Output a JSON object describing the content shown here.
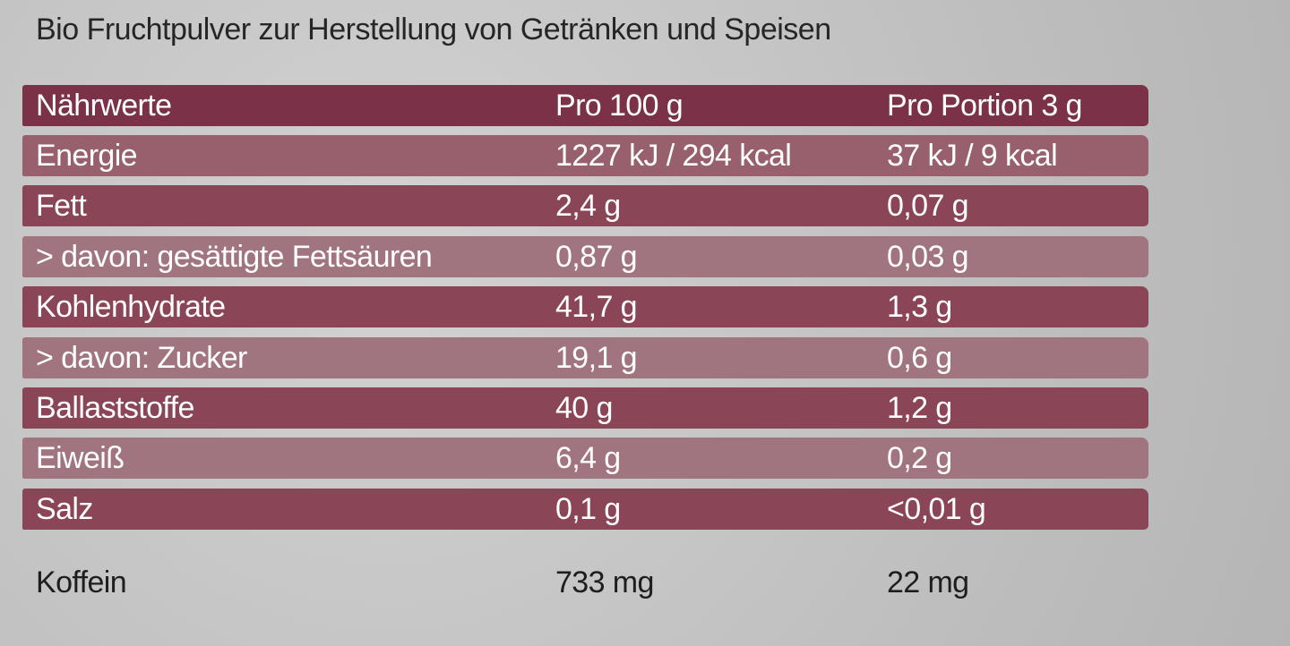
{
  "header": {
    "title": "Bio Fruchtpulver zur Herstellung von Getränken und Speisen"
  },
  "table": {
    "columns": [
      "Nährwerte",
      "Pro 100 g",
      "Pro Portion 3 g"
    ],
    "rows": [
      [
        "Energie",
        "1227 kJ / 294 kcal",
        "37 kJ / 9 kcal"
      ],
      [
        "Fett",
        "2,4 g",
        "0,07 g"
      ],
      [
        "> davon: gesättigte Fettsäuren",
        "0,87 g",
        "0,03 g"
      ],
      [
        "Kohlenhydrate",
        "41,7 g",
        "1,3 g"
      ],
      [
        "> davon: Zucker",
        "19,1 g",
        "0,6 g"
      ],
      [
        "Ballaststoffe",
        "40 g",
        "1,2 g"
      ],
      [
        "Eiweiß",
        "6,4 g",
        "0,2 g"
      ],
      [
        "Salz",
        "0,1 g",
        "<0,01 g"
      ]
    ]
  },
  "extra": [
    "Koffein",
    "733 mg",
    "22 mg"
  ]
}
